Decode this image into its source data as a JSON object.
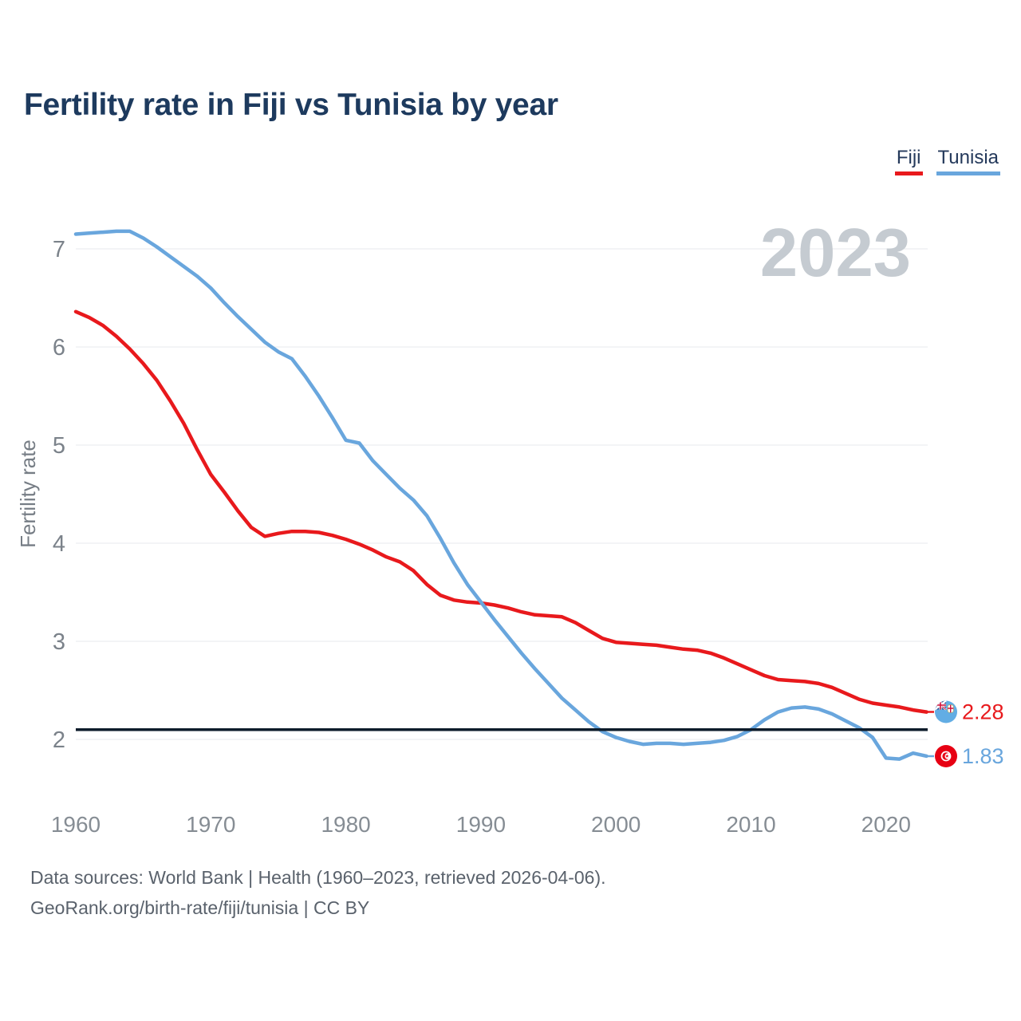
{
  "title": "Fertility rate in Fiji vs Tunisia by year",
  "watermark": "2023",
  "legend": {
    "items": [
      {
        "label": "Fiji",
        "color": "#e8191c"
      },
      {
        "label": "Tunisia",
        "color": "#69a6dd"
      }
    ]
  },
  "y_axis": {
    "label": "Fertility rate",
    "ticks": [
      7,
      6,
      5,
      4,
      3,
      2
    ]
  },
  "x_axis": {
    "ticks": [
      1960,
      1970,
      1980,
      1990,
      2000,
      2010,
      2020
    ]
  },
  "end_labels": {
    "fiji": {
      "value": "2.28",
      "icon": "fiji-flag"
    },
    "tunisia": {
      "value": "1.83",
      "icon": "tunisia-flag"
    }
  },
  "footer": {
    "line1": "Data sources: World Bank | Health (1960–2023, retrieved 2026-04-06).",
    "line2": "GeoRank.org/birth-rate/fiji/tunisia | CC BY"
  },
  "colors": {
    "fiji_line": "#e8191c",
    "tunisia_line": "#69a6dd",
    "title_text": "#1d3a5e",
    "watermark_text": "#c5cbd1",
    "gridline": "#e7e9ec",
    "axis_text": "#868d94",
    "reference_line": "#0d1c2b",
    "footer_text": "#5a626c"
  },
  "chart_data": {
    "type": "line",
    "title": "Fertility rate in Fiji vs Tunisia by year",
    "xlabel": "",
    "ylabel": "Fertility rate",
    "xlim": [
      1960,
      2023
    ],
    "ylim": [
      1.4,
      7.4
    ],
    "grid": true,
    "legend_position": "top-right",
    "reference_line": 2.1,
    "years": [
      1960,
      1961,
      1962,
      1963,
      1964,
      1965,
      1966,
      1967,
      1968,
      1969,
      1970,
      1971,
      1972,
      1973,
      1974,
      1975,
      1976,
      1977,
      1978,
      1979,
      1980,
      1981,
      1982,
      1983,
      1984,
      1985,
      1986,
      1987,
      1988,
      1989,
      1990,
      1991,
      1992,
      1993,
      1994,
      1995,
      1996,
      1997,
      1998,
      1999,
      2000,
      2001,
      2002,
      2003,
      2004,
      2005,
      2006,
      2007,
      2008,
      2009,
      2010,
      2011,
      2012,
      2013,
      2014,
      2015,
      2016,
      2017,
      2018,
      2019,
      2020,
      2021,
      2022,
      2023
    ],
    "series": [
      {
        "name": "Fiji",
        "color": "#e8191c",
        "final_value": 2.28,
        "values": [
          6.36,
          6.3,
          6.22,
          6.11,
          5.98,
          5.83,
          5.66,
          5.45,
          5.22,
          4.95,
          4.7,
          4.52,
          4.33,
          4.16,
          4.07,
          4.1,
          4.12,
          4.12,
          4.11,
          4.08,
          4.04,
          3.99,
          3.93,
          3.86,
          3.81,
          3.72,
          3.58,
          3.47,
          3.42,
          3.4,
          3.39,
          3.37,
          3.34,
          3.3,
          3.27,
          3.26,
          3.25,
          3.19,
          3.11,
          3.03,
          2.99,
          2.98,
          2.97,
          2.96,
          2.94,
          2.92,
          2.91,
          2.88,
          2.83,
          2.77,
          2.71,
          2.65,
          2.61,
          2.6,
          2.59,
          2.57,
          2.53,
          2.47,
          2.41,
          2.37,
          2.35,
          2.33,
          2.3,
          2.28
        ]
      },
      {
        "name": "Tunisia",
        "color": "#69a6dd",
        "final_value": 1.83,
        "values": [
          7.15,
          7.16,
          7.17,
          7.18,
          7.18,
          7.11,
          7.02,
          6.92,
          6.82,
          6.72,
          6.6,
          6.45,
          6.31,
          6.18,
          6.05,
          5.95,
          5.88,
          5.7,
          5.5,
          5.28,
          5.05,
          5.02,
          4.84,
          4.7,
          4.56,
          4.44,
          4.28,
          4.05,
          3.8,
          3.58,
          3.4,
          3.22,
          3.05,
          2.88,
          2.72,
          2.57,
          2.42,
          2.3,
          2.18,
          2.08,
          2.02,
          1.98,
          1.95,
          1.96,
          1.96,
          1.95,
          1.96,
          1.97,
          1.99,
          2.03,
          2.1,
          2.2,
          2.28,
          2.32,
          2.33,
          2.31,
          2.26,
          2.19,
          2.12,
          2.02,
          1.81,
          1.8,
          1.86,
          1.83
        ]
      }
    ]
  }
}
